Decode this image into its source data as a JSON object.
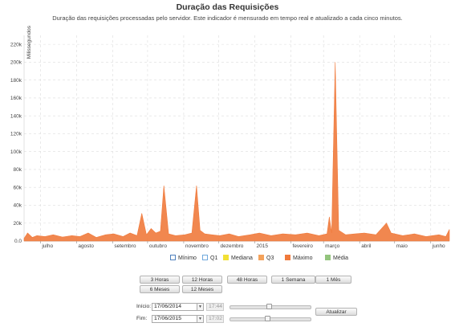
{
  "header": {
    "title": "Duração das Requisições",
    "subtitle": "Duração das requisições processadas pelo servidor. Este indicador é mensurado em tempo real e atualizado a cada cinco minutos."
  },
  "chart_data": {
    "type": "area",
    "ylabel": "Milissegundos",
    "ylim": [
      0,
      230000
    ],
    "yticks": [
      "0.0",
      "20k",
      "40k",
      "60k",
      "80k",
      "100k",
      "120k",
      "140k",
      "160k",
      "180k",
      "200k",
      "220k"
    ],
    "yvalues": [
      0,
      20000,
      40000,
      60000,
      80000,
      100000,
      120000,
      140000,
      160000,
      180000,
      200000,
      220000
    ],
    "x_range": [
      "2014-06-17",
      "2015-06-17"
    ],
    "xticks": [
      {
        "label": "julho",
        "date": "2014-07-01"
      },
      {
        "label": "agosto",
        "date": "2014-08-01"
      },
      {
        "label": "setembro",
        "date": "2014-09-01"
      },
      {
        "label": "outubro",
        "date": "2014-10-01"
      },
      {
        "label": "novembro",
        "date": "2014-11-01"
      },
      {
        "label": "dezembro",
        "date": "2014-12-01"
      },
      {
        "label": "2015",
        "date": "2015-01-01"
      },
      {
        "label": "fevereiro",
        "date": "2015-02-01"
      },
      {
        "label": "março",
        "date": "2015-03-01"
      },
      {
        "label": "abril",
        "date": "2015-04-01"
      },
      {
        "label": "maio",
        "date": "2015-05-01"
      },
      {
        "label": "junho",
        "date": "2015-06-01"
      }
    ],
    "grid": true,
    "legend_position": "bottom",
    "series": [
      {
        "name": "Mínimo",
        "color": "#4f81bd",
        "style": "outline",
        "values": []
      },
      {
        "name": "Q1",
        "color": "#6fa8dc",
        "style": "outline",
        "values": []
      },
      {
        "name": "Mediana",
        "color": "#f2e035",
        "values": []
      },
      {
        "name": "Q3",
        "color": "#f4a25b",
        "values": []
      },
      {
        "name": "Máximo",
        "color": "#f07a3c",
        "points": [
          [
            "2014-06-17",
            3000
          ],
          [
            "2014-06-20",
            9000
          ],
          [
            "2014-06-24",
            4000
          ],
          [
            "2014-06-28",
            6000
          ],
          [
            "2014-07-05",
            5000
          ],
          [
            "2014-07-12",
            7000
          ],
          [
            "2014-07-20",
            4500
          ],
          [
            "2014-07-28",
            6000
          ],
          [
            "2014-08-04",
            5000
          ],
          [
            "2014-08-11",
            9000
          ],
          [
            "2014-08-18",
            4000
          ],
          [
            "2014-08-26",
            7000
          ],
          [
            "2014-09-02",
            8000
          ],
          [
            "2014-09-10",
            5000
          ],
          [
            "2014-09-16",
            9000
          ],
          [
            "2014-09-22",
            6000
          ],
          [
            "2014-09-26",
            31000
          ],
          [
            "2014-09-30",
            7000
          ],
          [
            "2014-10-04",
            14000
          ],
          [
            "2014-10-08",
            9000
          ],
          [
            "2014-10-12",
            11000
          ],
          [
            "2014-10-15",
            62000
          ],
          [
            "2014-10-19",
            8000
          ],
          [
            "2014-10-25",
            6000
          ],
          [
            "2014-11-02",
            7000
          ],
          [
            "2014-11-08",
            9000
          ],
          [
            "2014-11-12",
            62000
          ],
          [
            "2014-11-15",
            12000
          ],
          [
            "2014-11-19",
            8000
          ],
          [
            "2014-11-25",
            7000
          ],
          [
            "2014-12-02",
            6000
          ],
          [
            "2014-12-10",
            8000
          ],
          [
            "2014-12-18",
            5000
          ],
          [
            "2014-12-28",
            7000
          ],
          [
            "2015-01-05",
            9000
          ],
          [
            "2015-01-15",
            6000
          ],
          [
            "2015-01-25",
            8000
          ],
          [
            "2015-02-05",
            7000
          ],
          [
            "2015-02-15",
            9000
          ],
          [
            "2015-02-25",
            6000
          ],
          [
            "2015-03-04",
            8000
          ],
          [
            "2015-03-06",
            27000
          ],
          [
            "2015-03-08",
            9000
          ],
          [
            "2015-03-11",
            200000
          ],
          [
            "2015-03-14",
            12000
          ],
          [
            "2015-03-20",
            7000
          ],
          [
            "2015-03-28",
            8000
          ],
          [
            "2015-04-05",
            9000
          ],
          [
            "2015-04-15",
            7000
          ],
          [
            "2015-04-24",
            20000
          ],
          [
            "2015-04-28",
            9000
          ],
          [
            "2015-05-08",
            6000
          ],
          [
            "2015-05-18",
            8000
          ],
          [
            "2015-05-28",
            5000
          ],
          [
            "2015-06-08",
            7000
          ],
          [
            "2015-06-14",
            5000
          ],
          [
            "2015-06-17",
            13000
          ]
        ]
      },
      {
        "name": "Média",
        "color": "#93c47d",
        "values": []
      }
    ]
  },
  "controls": {
    "range_buttons": [
      "3 Horas",
      "12 Horas",
      "48 Horas",
      "1 Semana",
      "1 Mês",
      "6 Meses",
      "12 Meses"
    ],
    "start_label": "Início:",
    "end_label": "Fim:",
    "start_date": "17/06/2014",
    "end_date": "17/06/2015",
    "start_time": "17:44",
    "end_time": "17:02",
    "start_slider": 0.48,
    "end_slider": 0.46,
    "update_label": "Atualizar"
  }
}
